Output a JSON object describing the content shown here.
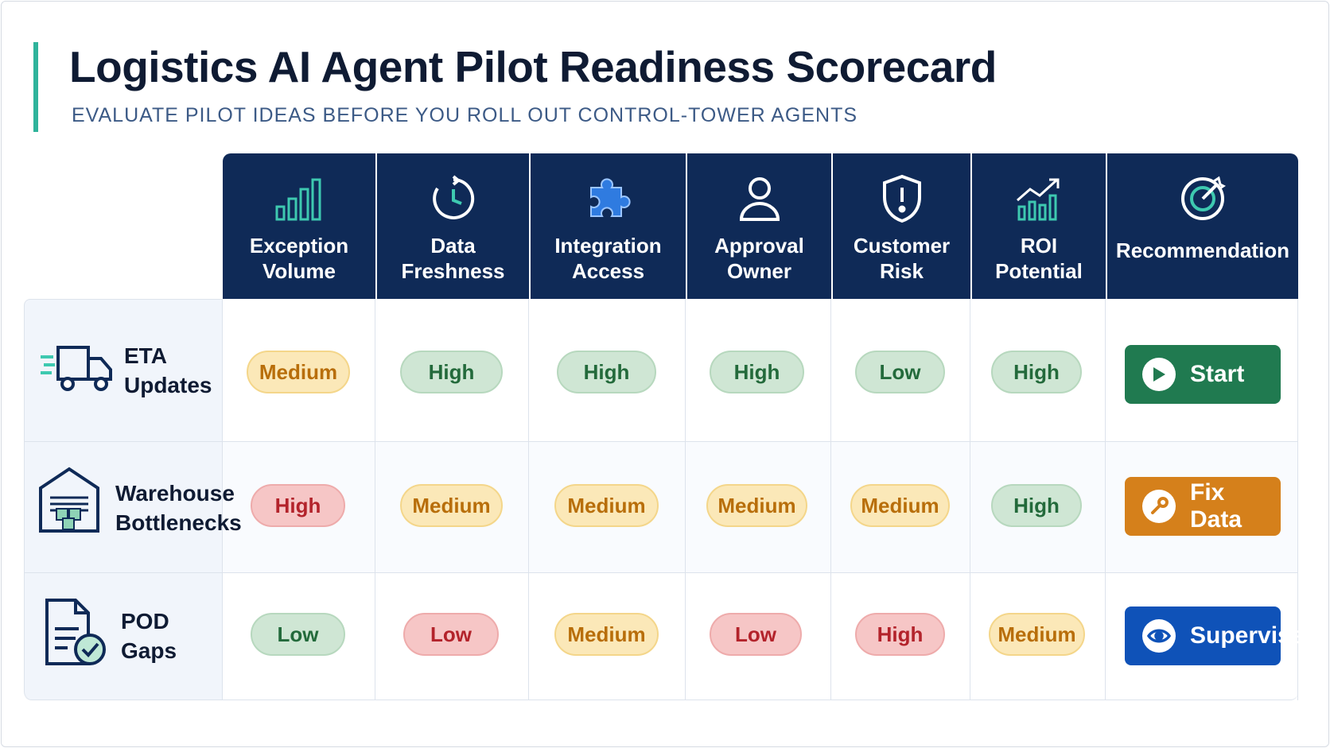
{
  "title": "Logistics AI Agent Pilot Readiness Scorecard",
  "subtitle": "EVALUATE PILOT IDEAS BEFORE YOU ROLL OUT CONTROL-TOWER AGENTS",
  "colors": {
    "header_bg": "#0f2a57",
    "accent": "#2fb39b",
    "medium": "#fbe8b8",
    "good": "#cfe6d4",
    "bad": "#f6c6c6",
    "start": "#207a50",
    "fix_data": "#d5801b",
    "supervise": "#0f52b8"
  },
  "columns": [
    {
      "line1": "Exception",
      "line2": "Volume",
      "icon": "bar-chart-icon"
    },
    {
      "line1": "Data",
      "line2": "Freshness",
      "icon": "clock-refresh-icon"
    },
    {
      "line1": "Integration",
      "line2": "Access",
      "icon": "puzzle-icon"
    },
    {
      "line1": "Approval",
      "line2": "Owner",
      "icon": "user-icon"
    },
    {
      "line1": "Customer",
      "line2": "Risk",
      "icon": "shield-alert-icon"
    },
    {
      "line1": "ROI",
      "line2": "Potential",
      "icon": "trend-up-icon"
    },
    {
      "line1": "Recommendation",
      "line2": "",
      "icon": "target-icon"
    }
  ],
  "rows": [
    {
      "line1": "ETA",
      "line2": "Updates",
      "icon": "truck-icon",
      "scores": [
        "Medium",
        "High",
        "High",
        "High",
        "Low",
        "High"
      ],
      "action": "Start",
      "action_icon": "play-icon"
    },
    {
      "line1": "Warehouse",
      "line2": "Bottlenecks",
      "icon": "warehouse-icon",
      "scores": [
        "High",
        "Medium",
        "Medium",
        "Medium",
        "Medium",
        "High"
      ],
      "action": "Fix Data",
      "action_icon": "wrench-icon"
    },
    {
      "line1": "POD",
      "line2": "Gaps",
      "icon": "document-check-icon",
      "scores": [
        "Low",
        "Low",
        "Medium",
        "Low",
        "High",
        "Medium"
      ],
      "action": "Supervise",
      "action_icon": "eye-icon"
    }
  ]
}
